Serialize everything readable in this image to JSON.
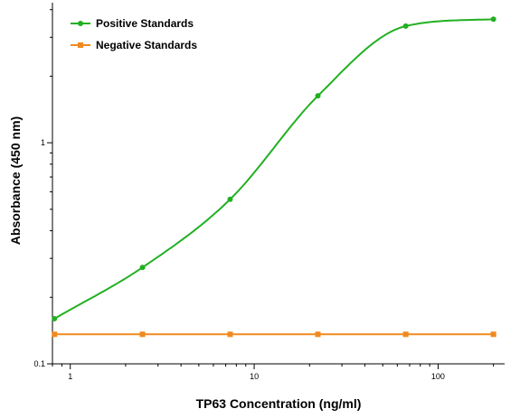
{
  "chart_data": {
    "type": "line",
    "xlabel": "TP63 Concentration (ng/ml)",
    "ylabel": "Absorbance (450 nm)",
    "x_scale": "log",
    "y_scale": "log",
    "xlim": [
      0.8,
      230
    ],
    "ylim": [
      0.1,
      4.3
    ],
    "x_ticks": [
      1,
      10,
      100
    ],
    "x_tick_labels": [
      "1",
      "10",
      "100"
    ],
    "y_ticks": [
      0.1,
      1
    ],
    "y_tick_labels": [
      "0.1",
      "1"
    ],
    "grid": false,
    "legend_position": "top-left",
    "series": [
      {
        "name": "Positive Standards",
        "color": "#22b022",
        "marker": "circle",
        "x": [
          0.82,
          2.47,
          7.4,
          22.2,
          66.7,
          200
        ],
        "y": [
          0.16,
          0.273,
          0.555,
          1.63,
          3.37,
          3.62
        ],
        "fit_curve": true
      },
      {
        "name": "Negative Standards",
        "color": "#f08a1e",
        "marker": "square",
        "x": [
          0.82,
          2.47,
          7.4,
          22.2,
          66.7,
          200
        ],
        "y": [
          0.136,
          0.136,
          0.136,
          0.136,
          0.136,
          0.136
        ],
        "fit_curve": false
      }
    ]
  }
}
